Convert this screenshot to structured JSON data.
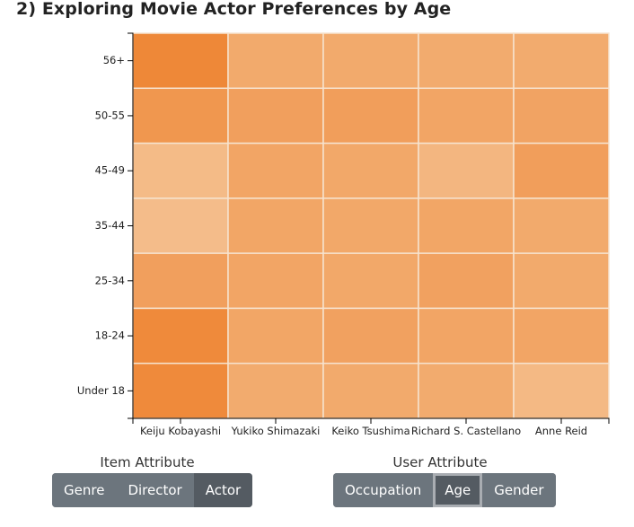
{
  "page": {
    "title": "2) Exploring Movie Actor Preferences by Age"
  },
  "chart_data": {
    "type": "heatmap",
    "x_categories": [
      "Keiju Kobayashi",
      "Yukiko Shimazaki",
      "Keiko Tsushima",
      "Richard S. Castellano",
      "Anne Reid"
    ],
    "y_categories": [
      "56+",
      "50-55",
      "45-49",
      "35-44",
      "25-34",
      "18-24",
      "Under 18"
    ],
    "color_scale": {
      "low": "#f5c496",
      "high": "#ee8533"
    },
    "values": [
      [
        0.95,
        0.42,
        0.42,
        0.4,
        0.4
      ],
      [
        0.72,
        0.58,
        0.6,
        0.5,
        0.52
      ],
      [
        0.15,
        0.5,
        0.45,
        0.22,
        0.6
      ],
      [
        0.12,
        0.48,
        0.45,
        0.48,
        0.42
      ],
      [
        0.58,
        0.5,
        0.45,
        0.55,
        0.42
      ],
      [
        0.92,
        0.48,
        0.55,
        0.5,
        0.5
      ],
      [
        0.92,
        0.4,
        0.42,
        0.4,
        0.18
      ]
    ],
    "grid": true,
    "cell_border_color": "#f6e3cf"
  },
  "controls": {
    "item_attribute": {
      "label": "Item Attribute",
      "buttons": [
        {
          "label": "Genre",
          "active": false
        },
        {
          "label": "Director",
          "active": false
        },
        {
          "label": "Actor",
          "active": true
        }
      ]
    },
    "user_attribute": {
      "label": "User Attribute",
      "buttons": [
        {
          "label": "Occupation",
          "active": false
        },
        {
          "label": "Age",
          "active": true
        },
        {
          "label": "Gender",
          "active": false
        }
      ]
    }
  }
}
